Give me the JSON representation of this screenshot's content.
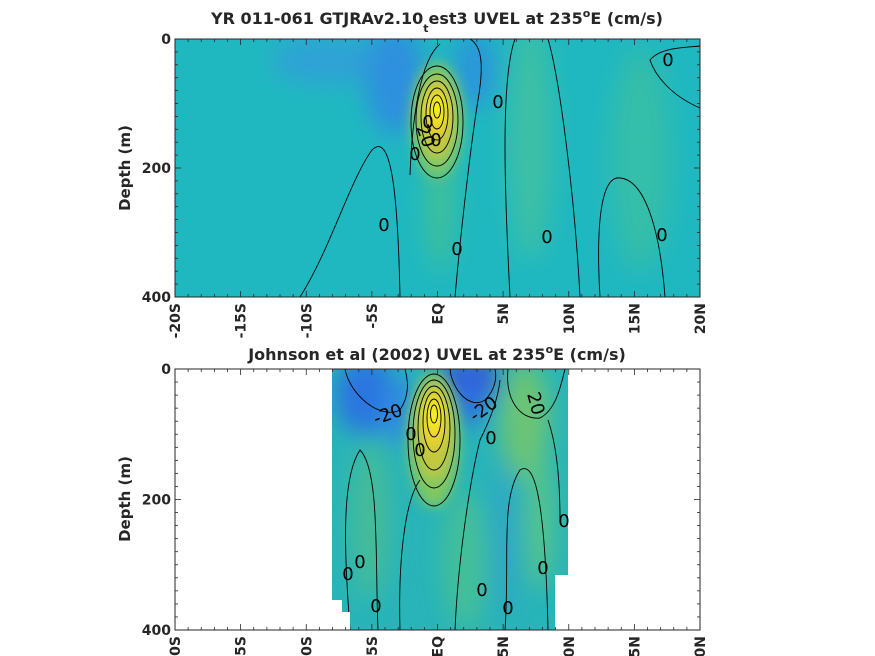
{
  "chart_data": [
    {
      "type": "heatmap",
      "title": "YR 011-061 GTJRAv2.10",
      "title_sub": "t",
      "title_rest": "est3 UVEL at 235",
      "title_sup": "o",
      "title_end": "E (cm/s)",
      "ylabel": "Depth (m)",
      "xlim": [
        -20,
        20
      ],
      "ylim": [
        0,
        400
      ],
      "x_ticks": [
        "-20S",
        "-15S",
        "-10S",
        "-5S",
        "EQ",
        "5N",
        "10N",
        "15N",
        "20N"
      ],
      "y_ticks": [
        "0",
        "200",
        "400"
      ],
      "data_x_range": [
        -20,
        20
      ],
      "contour_labels": [
        "0",
        "0",
        "0",
        "0",
        "0",
        "0",
        "0",
        "20",
        "0",
        "0"
      ],
      "features": [
        {
          "type": "eastward_core",
          "lat": 0,
          "depth": 110,
          "value": 80
        },
        {
          "type": "westward",
          "lat": -3,
          "depth": 40,
          "value": -20
        },
        {
          "type": "westward",
          "lat": 3,
          "depth": 50,
          "value": -15
        }
      ],
      "colors": {
        "background": "#20b8c0",
        "core": "#f8f80c"
      }
    },
    {
      "type": "heatmap",
      "title": "Johnson et al (2002) UVEL at 235",
      "title_sup": "o",
      "title_end": "E (cm/s)",
      "ylabel": "Depth (m)",
      "xlim": [
        -20,
        20
      ],
      "ylim": [
        0,
        400
      ],
      "x_ticks": [
        "-20S",
        "-15S",
        "-10S",
        "-5S",
        "EQ",
        "5N",
        "10N",
        "15N",
        "20N"
      ],
      "y_ticks": [
        "0",
        "200",
        "400"
      ],
      "data_x_range": [
        -8,
        10
      ],
      "contour_labels": [
        "-20",
        "-20",
        "20",
        "0",
        "0",
        "0",
        "0",
        "0",
        "0",
        "0",
        "0",
        "0",
        "0"
      ],
      "features": [
        {
          "type": "eastward_core",
          "lat": 0,
          "depth": 90,
          "value": 90
        },
        {
          "type": "westward",
          "lat": 2.5,
          "depth": 15,
          "value": -40
        },
        {
          "type": "westward",
          "lat": -5,
          "depth": 40,
          "value": -30
        },
        {
          "type": "eastward",
          "lat": 7,
          "depth": 40,
          "value": 20
        }
      ],
      "colors": {
        "background": "#28b4b8",
        "core": "#f8f80c",
        "min": "#3848d0"
      }
    }
  ]
}
